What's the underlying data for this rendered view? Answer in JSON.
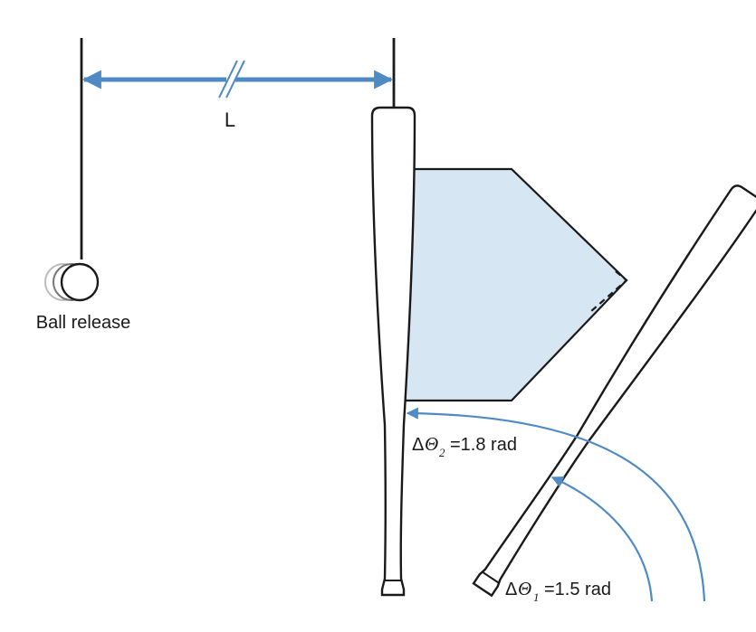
{
  "distance_label": "L",
  "ball_label": "Ball release",
  "theta2": {
    "delta": "Δ",
    "symbol": "Θ",
    "subscript": "2",
    "value": "=1.8 rad"
  },
  "theta1": {
    "delta": "Δ",
    "symbol": "Θ",
    "subscript": "1",
    "value": "=1.5 rad"
  },
  "colors": {
    "arrow": "#4f8ac4",
    "zone_fill": "#d6e6f2",
    "stroke": "#1a1a1a"
  }
}
